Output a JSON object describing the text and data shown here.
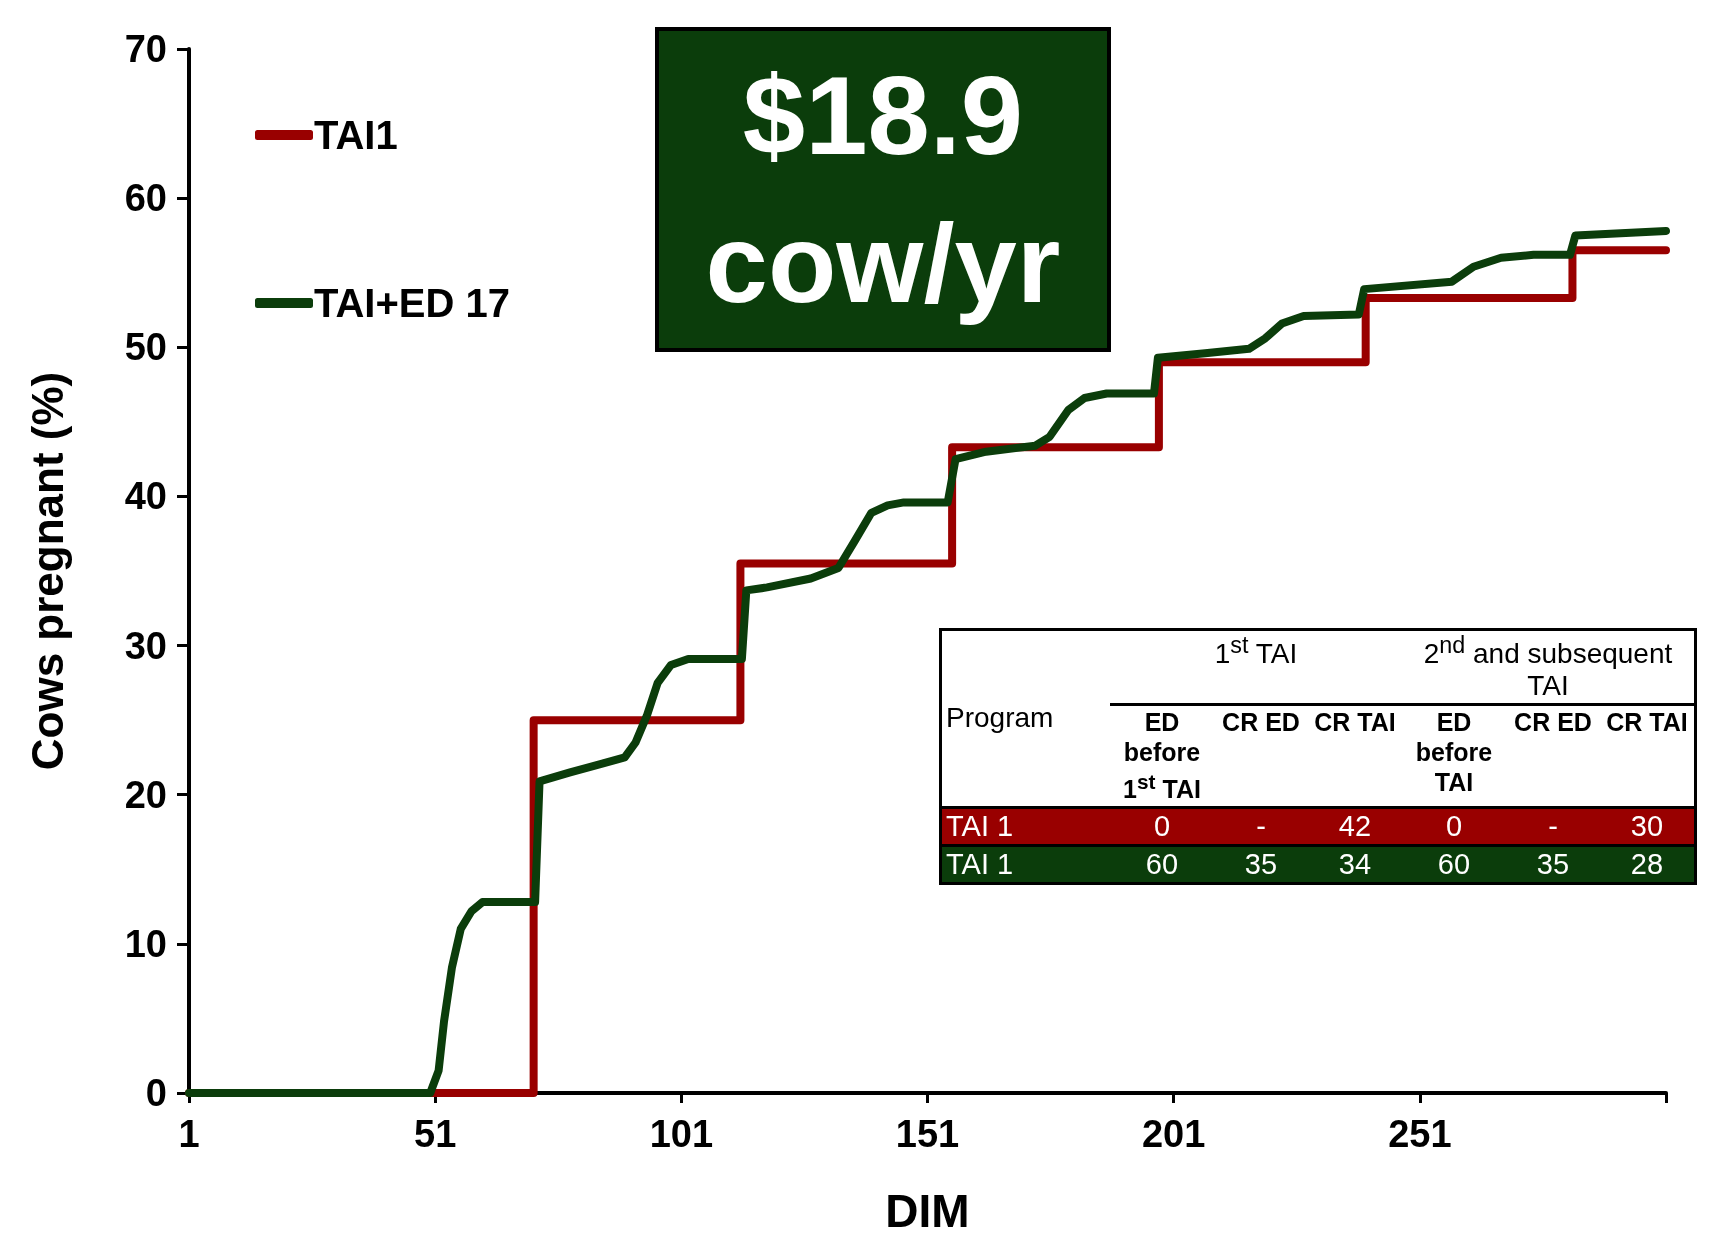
{
  "chart_data": {
    "type": "line",
    "xlabel": "DIM",
    "ylabel": "Cows pregnant (%)",
    "xlim": [
      1,
      301
    ],
    "xticks": [
      1,
      51,
      101,
      151,
      201,
      251,
      {
        "value": 301,
        "label": null
      }
    ],
    "ylim": [
      0,
      70
    ],
    "yticks": [
      0,
      10,
      20,
      30,
      40,
      50,
      60,
      70
    ],
    "grid": false,
    "legend": "top left",
    "marker": "none",
    "line_style": "solid",
    "series": [
      {
        "name": "TAI1",
        "type": "step",
        "color": "#990000",
        "x": [
          1,
          71,
          113,
          156,
          198,
          240,
          282,
          301
        ],
        "values": [
          0,
          25,
          35.5,
          43.3,
          49,
          53.3,
          56.5,
          56.5
        ]
      },
      {
        "name": "TAI+ED 17",
        "color": "#0b3d0b",
        "x": [
          1,
          50,
          51.7,
          52.8,
          54.4,
          56.2,
          58.4,
          60.6,
          71.3,
          72.2,
          78.4,
          84,
          89.5,
          91.7,
          94,
          96.2,
          98.9,
          102.4,
          113.3,
          114.2,
          118.4,
          127.3,
          132.9,
          136.2,
          139.6,
          142.9,
          146.2,
          155.1,
          156.7,
          162.9,
          172.9,
          175.8,
          179.6,
          182.9,
          187.4,
          197,
          197.8,
          207.4,
          216.3,
          219.6,
          223,
          227.4,
          238.6,
          239.7,
          257.5,
          261.9,
          267.5,
          274.1,
          281.5,
          282.6,
          301
        ],
        "values": [
          0,
          0,
          1.5,
          4.8,
          8.4,
          11,
          12.2,
          12.8,
          12.8,
          20.9,
          21.5,
          22,
          22.5,
          23.5,
          25.3,
          27.5,
          28.7,
          29.1,
          29.1,
          33.7,
          33.9,
          34.5,
          35.2,
          37,
          38.9,
          39.4,
          39.6,
          39.6,
          42.5,
          43,
          43.4,
          44,
          45.8,
          46.6,
          46.9,
          46.9,
          49.3,
          49.6,
          49.9,
          50.6,
          51.6,
          52.1,
          52.2,
          53.9,
          54.4,
          55.4,
          56,
          56.2,
          56.2,
          57.5,
          57.8
        ]
      }
    ],
    "annotations": [
      "$18.9 cow/yr",
      "Program",
      "1$^{st}$ TAI",
      "2$^{nd}$ and subsequent TAI",
      "ED before 1$^{st}$ TAI",
      "CR ED",
      "CR TAI",
      "ED before TAI",
      "CR ED",
      "CR TAI",
      "TAI 1",
      "0",
      "-",
      "42",
      "0",
      "-",
      "30",
      "TAI 1",
      "60",
      "35",
      "34",
      "60",
      "35",
      "28"
    ]
  }
}
